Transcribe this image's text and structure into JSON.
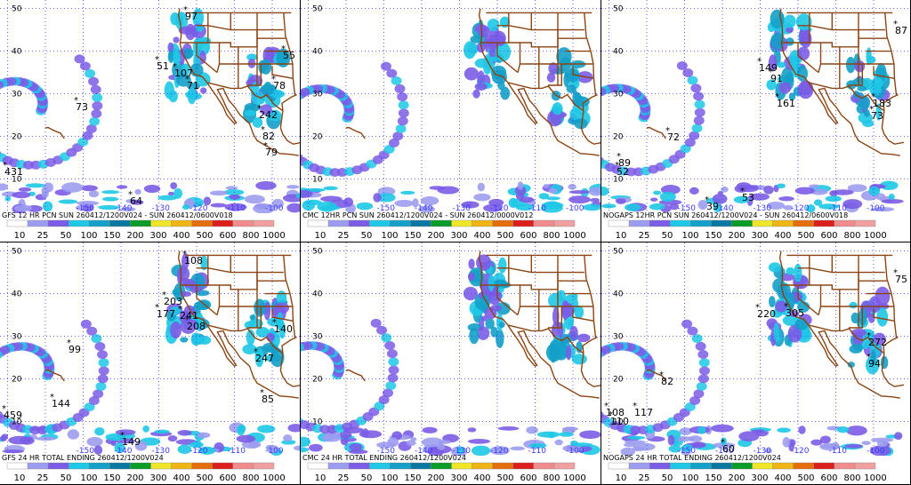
{
  "panels": [
    {
      "id": "gfs12",
      "footer": "GFS 12 HR PCN SUN 260412/1200V024 - SUN 260412/0600V018",
      "lat_labels": [
        "50",
        "40",
        "30",
        "20",
        "10"
      ],
      "lon_labels": [
        "-150",
        "-140",
        "-130",
        "-120",
        "-110",
        "-100"
      ],
      "values": [
        {
          "t": "97"
        },
        {
          "t": "51"
        },
        {
          "t": "107"
        },
        {
          "t": "71"
        },
        {
          "t": "55"
        },
        {
          "t": "78"
        },
        {
          "t": "73"
        },
        {
          "t": "242"
        },
        {
          "t": "82"
        },
        {
          "t": "79"
        },
        {
          "t": "431"
        },
        {
          "t": "64"
        }
      ]
    },
    {
      "id": "cmc12",
      "footer": "CMC 12HR PCN SUN 260412/1200V024 - SUN 260412/0000V012",
      "lat_labels": [
        "50",
        "40",
        "30",
        "20",
        "10"
      ],
      "lon_labels": [
        "-150",
        "-140",
        "-130",
        "-120",
        "-110",
        "-100"
      ],
      "values": []
    },
    {
      "id": "nogaps12",
      "footer": "NOGAPS 12HR PCN SUN 260412/1200V024 - SUN 260412/0600V018",
      "lat_labels": [
        "50",
        "40",
        "30",
        "20",
        "10"
      ],
      "lon_labels": [
        "-150",
        "-140",
        "-130",
        "-120",
        "-110",
        "-100"
      ],
      "values": [
        {
          "t": "87"
        },
        {
          "t": "149"
        },
        {
          "t": "91"
        },
        {
          "t": "161"
        },
        {
          "t": "183"
        },
        {
          "t": "73"
        },
        {
          "t": "72"
        },
        {
          "t": "89"
        },
        {
          "t": "52"
        },
        {
          "t": "53"
        },
        {
          "t": "39"
        }
      ]
    },
    {
      "id": "gfs24",
      "footer": "GFS 24 HR TOTAL ENDING 260412/1200V024",
      "lat_labels": [
        "50",
        "40",
        "30",
        "20",
        "10"
      ],
      "lon_labels": [
        "-150",
        "-140",
        "-130",
        "-120",
        "-110",
        "-100"
      ],
      "values": [
        {
          "t": "108"
        },
        {
          "t": "203"
        },
        {
          "t": "177"
        },
        {
          "t": "241"
        },
        {
          "t": "208"
        },
        {
          "t": "140"
        },
        {
          "t": "247"
        },
        {
          "t": "99"
        },
        {
          "t": "85"
        },
        {
          "t": "144"
        },
        {
          "t": "459"
        },
        {
          "t": "149"
        }
      ]
    },
    {
      "id": "cmc24",
      "footer": "CMC 24 HR TOTAL ENDING 260412/1200V024",
      "lat_labels": [
        "50",
        "40",
        "30",
        "20",
        "10"
      ],
      "lon_labels": [
        "-150",
        "-140",
        "-130",
        "-120",
        "-110",
        "-100"
      ],
      "values": []
    },
    {
      "id": "nogaps24",
      "footer": "NOGAPS 24 HR TOTAL ENDING 260412/1200V024",
      "lat_labels": [
        "50",
        "40",
        "30",
        "20",
        "10"
      ],
      "lon_labels": [
        "-150",
        "-140",
        "-130",
        "-120",
        "-110",
        "-100"
      ],
      "values": [
        {
          "t": "75"
        },
        {
          "t": "220"
        },
        {
          "t": "305"
        },
        {
          "t": "272"
        },
        {
          "t": "94"
        },
        {
          "t": "82"
        },
        {
          "t": "108"
        },
        {
          "t": "117"
        },
        {
          "t": "110"
        },
        {
          "t": "60"
        }
      ]
    }
  ],
  "legend": {
    "labels": [
      "10",
      "25",
      "50",
      "100",
      "150",
      "200",
      "300",
      "400",
      "500",
      "600",
      "800",
      "1000"
    ],
    "colors": [
      "#ffffff",
      "#9c9cf0",
      "#7b5ce6",
      "#1ec8e6",
      "#14a0c8",
      "#0a78a0",
      "#0a9c28",
      "#f0e628",
      "#f0b414",
      "#e66e0a",
      "#dc1e1e",
      "#f08c8c",
      "#f0a0a0"
    ]
  }
}
